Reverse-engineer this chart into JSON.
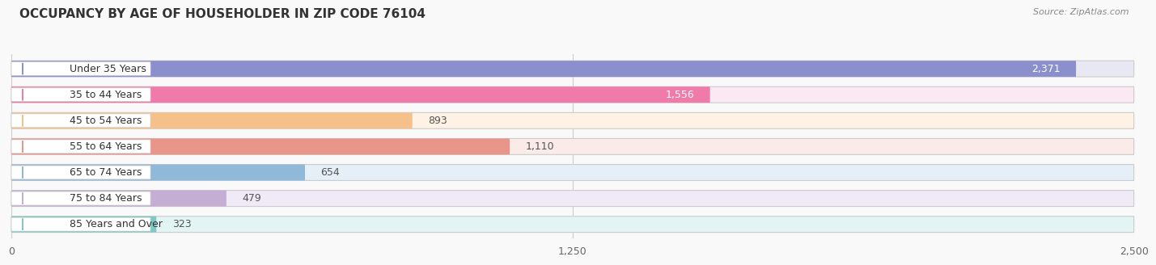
{
  "title": "OCCUPANCY BY AGE OF HOUSEHOLDER IN ZIP CODE 76104",
  "source": "Source: ZipAtlas.com",
  "categories": [
    "Under 35 Years",
    "35 to 44 Years",
    "45 to 54 Years",
    "55 to 64 Years",
    "65 to 74 Years",
    "75 to 84 Years",
    "85 Years and Over"
  ],
  "values": [
    2371,
    1556,
    893,
    1110,
    654,
    479,
    323
  ],
  "bar_colors": [
    "#8b8fcc",
    "#f07aaa",
    "#f5c08a",
    "#e8958a",
    "#90b8d8",
    "#c4aed4",
    "#7ec8c8"
  ],
  "bar_bg_colors": [
    "#e8e8f4",
    "#fce8f2",
    "#fef2e4",
    "#faeae8",
    "#e4eff8",
    "#f0eaf6",
    "#e2f4f4"
  ],
  "xlim": [
    0,
    2500
  ],
  "xticks": [
    0,
    1250,
    2500
  ],
  "title_fontsize": 11,
  "label_fontsize": 9,
  "value_fontsize": 9,
  "source_fontsize": 8,
  "background_color": "#f9f9f9"
}
